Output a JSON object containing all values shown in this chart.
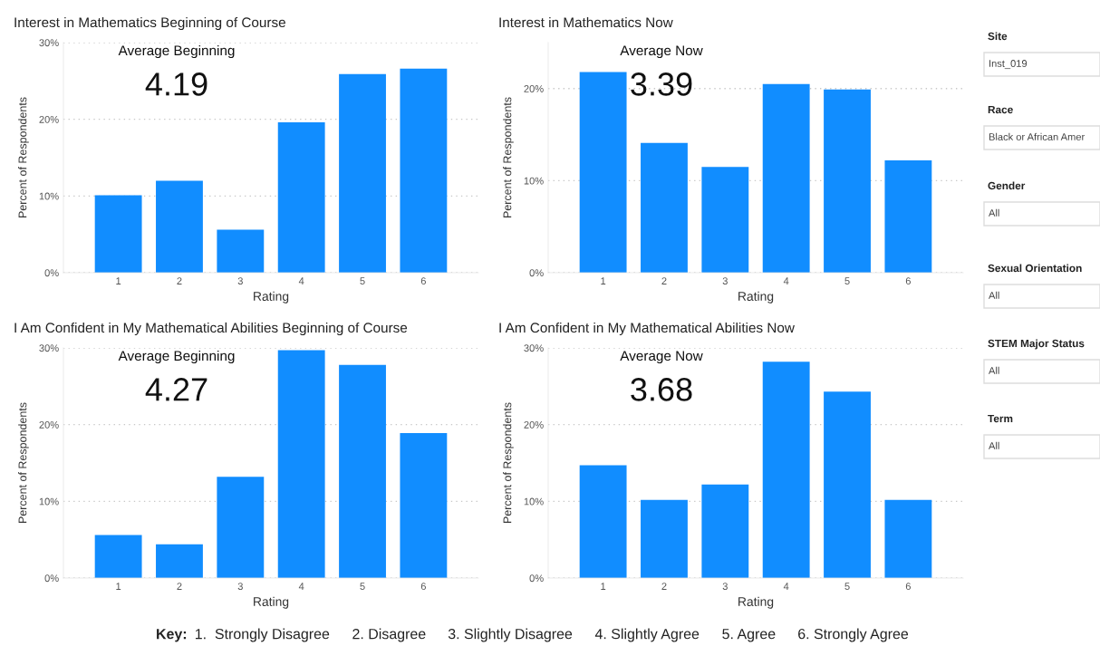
{
  "chart_data": [
    {
      "type": "bar",
      "title": "Interest in Mathematics Beginning of Course",
      "xlabel": "Rating",
      "ylabel": "Percent of Respondents",
      "categories": [
        "1",
        "2",
        "3",
        "4",
        "5",
        "6"
      ],
      "values": [
        10.1,
        12.0,
        5.6,
        19.6,
        25.9,
        26.6
      ],
      "color": "#118dff",
      "ylim": [
        0,
        30
      ],
      "yticks": [
        {
          "value": 0,
          "label": "0%"
        },
        {
          "value": 10,
          "label": "10%"
        },
        {
          "value": 20,
          "label": "20%"
        },
        {
          "value": 30,
          "label": "30%"
        }
      ],
      "grid": "y",
      "annotations": [
        "Average Beginning",
        "4.19"
      ]
    },
    {
      "type": "bar",
      "title": "Interest in Mathematics Now",
      "xlabel": "Rating",
      "ylabel": "Percent of Respondents",
      "categories": [
        "1",
        "2",
        "3",
        "4",
        "5",
        "6"
      ],
      "values": [
        21.8,
        14.1,
        11.5,
        20.5,
        19.9,
        12.2
      ],
      "color": "#118dff",
      "ylim": [
        0,
        25
      ],
      "yticks": [
        {
          "value": 0,
          "label": "0%"
        },
        {
          "value": 10,
          "label": "10%"
        },
        {
          "value": 20,
          "label": "20%"
        }
      ],
      "grid": "y",
      "annotations": [
        "Average Now",
        "3.39"
      ]
    },
    {
      "type": "bar",
      "title": "I Am Confident in My Mathematical Abilities Beginning of Course",
      "xlabel": "Rating",
      "ylabel": "Percent of Respondents",
      "categories": [
        "1",
        "2",
        "3",
        "4",
        "5",
        "6"
      ],
      "values": [
        5.6,
        4.4,
        13.2,
        29.7,
        27.8,
        18.9
      ],
      "color": "#118dff",
      "ylim": [
        0,
        30
      ],
      "yticks": [
        {
          "value": 0,
          "label": "0%"
        },
        {
          "value": 10,
          "label": "10%"
        },
        {
          "value": 20,
          "label": "20%"
        },
        {
          "value": 30,
          "label": "30%"
        }
      ],
      "grid": "y",
      "annotations": [
        "Average Beginning",
        "4.27"
      ]
    },
    {
      "type": "bar",
      "title": "I Am Confident in My Mathematical Abilities Now",
      "xlabel": "Rating",
      "ylabel": "Percent of Respondents",
      "categories": [
        "1",
        "2",
        "3",
        "4",
        "5",
        "6"
      ],
      "values": [
        14.7,
        10.2,
        12.2,
        28.2,
        24.3,
        10.2
      ],
      "color": "#118dff",
      "ylim": [
        0,
        30
      ],
      "yticks": [
        {
          "value": 0,
          "label": "0%"
        },
        {
          "value": 10,
          "label": "10%"
        },
        {
          "value": 20,
          "label": "20%"
        },
        {
          "value": 30,
          "label": "30%"
        }
      ],
      "grid": "y",
      "annotations": [
        "Average Now",
        "3.68"
      ]
    },
    {
      "type": "other",
      "annotations": [
        "Site",
        "Inst_019",
        "Race",
        "Black or African Amer",
        "Gender",
        "All",
        "Sexual Orientation",
        "All",
        "STEM Major Status",
        "All",
        "Term",
        "All"
      ]
    },
    {
      "type": "other",
      "annotations": [
        "Key:",
        "1.  Strongly Disagree",
        "2. Disagree",
        "3. Slightly Disagree",
        "4. Slightly Agree",
        "5. Agree",
        "6. Strongly Agree"
      ]
    }
  ]
}
